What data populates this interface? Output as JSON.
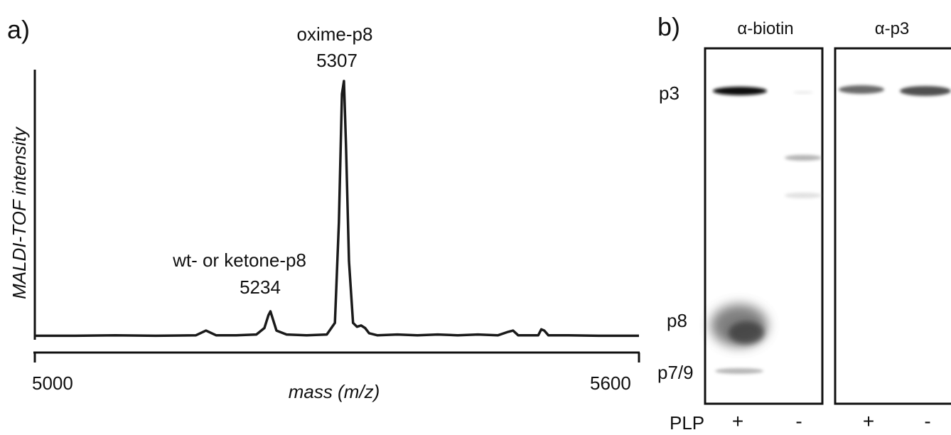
{
  "panel_a": {
    "label": "a)",
    "ylabel": "MALDI-TOF intensity",
    "xlabel": "mass (m/z)",
    "x_min_label": "5000",
    "x_max_label": "5600",
    "peak_labels": [
      {
        "name": "oxime-p8",
        "mass": "5307"
      },
      {
        "name": "wt- or ketone-p8",
        "mass": "5234"
      }
    ]
  },
  "panel_b": {
    "label": "b)",
    "blots": [
      {
        "title": "α-biotin"
      },
      {
        "title": "α-p3"
      }
    ],
    "row_labels": [
      "p3",
      "p8",
      "p7/9"
    ],
    "condition_label": "PLP",
    "lane_signs": [
      "+",
      "-",
      "+",
      "-"
    ]
  },
  "chart_data": {
    "type": "line",
    "title": "",
    "xlabel": "mass (m/z)",
    "ylabel": "MALDI-TOF intensity",
    "xlim": [
      5000,
      5600
    ],
    "ylim": [
      0,
      1
    ],
    "y_ticks_shown": false,
    "series": [
      {
        "x": [
          5000,
          5040,
          5080,
          5120,
          5160,
          5170,
          5180,
          5200,
          5220,
          5228,
          5232,
          5234,
          5236,
          5240,
          5250,
          5270,
          5290,
          5298,
          5302,
          5305,
          5307,
          5309,
          5312,
          5316,
          5320,
          5324,
          5328,
          5332,
          5340,
          5360,
          5380,
          5400,
          5420,
          5440,
          5460,
          5470,
          5475,
          5480,
          5500,
          5503,
          5506,
          5510,
          5530,
          5560,
          5600
        ],
        "y": [
          0.01,
          0.01,
          0.012,
          0.01,
          0.012,
          0.03,
          0.012,
          0.012,
          0.015,
          0.04,
          0.09,
          0.105,
          0.08,
          0.03,
          0.015,
          0.012,
          0.015,
          0.06,
          0.45,
          0.95,
          1.0,
          0.75,
          0.3,
          0.06,
          0.045,
          0.05,
          0.04,
          0.02,
          0.012,
          0.015,
          0.012,
          0.015,
          0.012,
          0.015,
          0.012,
          0.025,
          0.03,
          0.012,
          0.012,
          0.035,
          0.03,
          0.012,
          0.012,
          0.01,
          0.01
        ]
      }
    ],
    "annotations": [
      {
        "text": "oxime-p8 5307",
        "x": 5307,
        "y": 1.0
      },
      {
        "text": "wt- or ketone-p8 5234",
        "x": 5234,
        "y": 0.105
      }
    ]
  }
}
